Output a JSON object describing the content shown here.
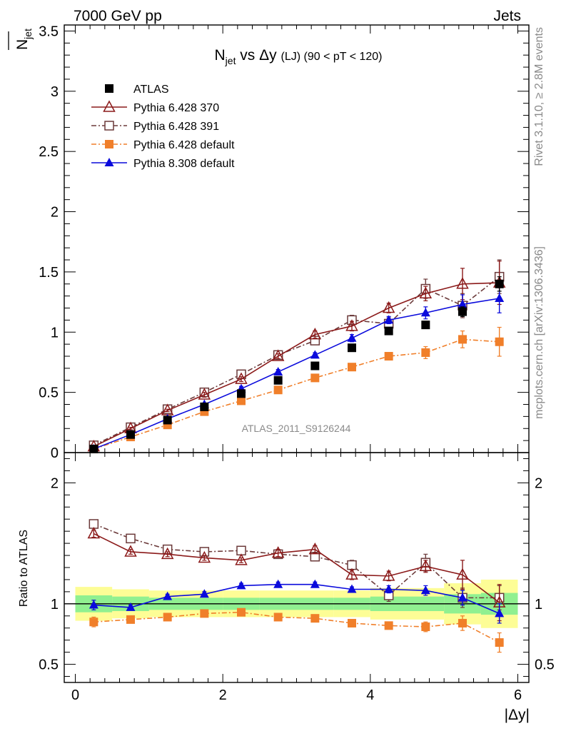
{
  "header": {
    "left": "7000 GeV pp",
    "right": "Jets"
  },
  "side_labels": {
    "rivet": "Rivet 3.1.10, ≥ 2.8M events",
    "mcplots": "mcplots.cern.ch [arXiv:1306.3436]"
  },
  "watermark": "ATLAS_2011_S9126244",
  "chart_data": [
    {
      "type": "scatter",
      "title_parts": {
        "n": "N",
        "n_sub": "jet",
        "mid": " vs Δy ",
        "small": "(LJ) (90 < pT < 120)"
      },
      "ylabel_parts": {
        "n": "N",
        "sub": "jet"
      },
      "xlabel": "|Δy|",
      "xlim": [
        -0.15,
        6.15
      ],
      "ylim": [
        0,
        3.55
      ],
      "xticks": [
        "0",
        "2",
        "4",
        "6"
      ],
      "yticks": [
        "0",
        "0.5",
        "1",
        "1.5",
        "2",
        "2.5",
        "3",
        "3.5"
      ],
      "x": [
        0.25,
        0.75,
        1.25,
        1.75,
        2.25,
        2.75,
        3.25,
        3.75,
        4.25,
        4.75,
        5.25,
        5.75
      ],
      "legend": {
        "placement": "top-left"
      },
      "series": [
        {
          "name": "ATLAS",
          "color": "#000000",
          "marker": "square",
          "line": "none",
          "values": [
            0.03,
            0.15,
            0.27,
            0.38,
            0.49,
            0.6,
            0.72,
            0.87,
            1.01,
            1.06,
            1.17,
            1.4
          ],
          "errors": [
            0.01,
            0.01,
            0.01,
            0.01,
            0.01,
            0.01,
            0.01,
            0.02,
            0.02,
            0.03,
            0.04,
            0.06
          ]
        },
        {
          "name": "Pythia 6.428 370",
          "color": "#8b1a1a",
          "marker": "triangle-open",
          "line": "solid",
          "values": [
            0.05,
            0.2,
            0.35,
            0.48,
            0.61,
            0.8,
            0.98,
            1.05,
            1.2,
            1.32,
            1.4,
            1.41
          ],
          "errors": [
            0.005,
            0.01,
            0.01,
            0.02,
            0.02,
            0.02,
            0.03,
            0.04,
            0.04,
            0.06,
            0.13,
            0.18
          ]
        },
        {
          "name": "Pythia 6.428 391",
          "color": "#6b3a3a",
          "marker": "square-open",
          "line": "dashdot",
          "values": [
            0.06,
            0.21,
            0.36,
            0.5,
            0.65,
            0.81,
            0.93,
            1.1,
            1.07,
            1.36,
            1.22,
            1.46
          ],
          "errors": [
            0.005,
            0.01,
            0.01,
            0.02,
            0.02,
            0.02,
            0.03,
            0.04,
            0.05,
            0.08,
            0.1,
            0.14
          ]
        },
        {
          "name": "Pythia 6.428 default",
          "color": "#f07f2a",
          "marker": "square",
          "line": "dashdot",
          "values": [
            0.03,
            0.13,
            0.23,
            0.34,
            0.43,
            0.52,
            0.62,
            0.71,
            0.8,
            0.83,
            0.94,
            0.92
          ],
          "errors": [
            0.005,
            0.01,
            0.01,
            0.01,
            0.02,
            0.02,
            0.02,
            0.03,
            0.03,
            0.05,
            0.07,
            0.12
          ]
        },
        {
          "name": "Pythia 8.308 default",
          "color": "#0a0adc",
          "marker": "triangle",
          "line": "solid",
          "values": [
            0.03,
            0.15,
            0.28,
            0.4,
            0.53,
            0.67,
            0.81,
            0.95,
            1.1,
            1.16,
            1.23,
            1.28
          ],
          "errors": [
            0.005,
            0.01,
            0.01,
            0.01,
            0.02,
            0.02,
            0.02,
            0.03,
            0.03,
            0.05,
            0.08,
            0.12
          ]
        }
      ]
    },
    {
      "type": "scatter",
      "ylabel": "Ratio to ATLAS",
      "xlabel": "|Δy|",
      "xlim": [
        -0.15,
        6.15
      ],
      "ylim": [
        0.35,
        2.25
      ],
      "yticks": [
        "0.5",
        "1",
        "2"
      ],
      "reference_line": 1,
      "bands": {
        "x_edges": [
          0,
          0.5,
          1,
          1.5,
          2,
          2.5,
          3,
          3.5,
          4,
          4.5,
          5,
          5.5,
          6
        ],
        "green_half": [
          0.07,
          0.06,
          0.05,
          0.05,
          0.05,
          0.05,
          0.05,
          0.05,
          0.06,
          0.06,
          0.08,
          0.09
        ],
        "yellow_half": [
          0.14,
          0.12,
          0.11,
          0.11,
          0.11,
          0.11,
          0.11,
          0.11,
          0.13,
          0.13,
          0.17,
          0.2
        ],
        "green_color": "#90f090",
        "yellow_color": "#fdfd96"
      },
      "series": [
        {
          "name": "Pythia 6.428 370",
          "color": "#8b1a1a",
          "marker": "triangle-open",
          "line": "solid",
          "values": [
            1.58,
            1.43,
            1.41,
            1.38,
            1.36,
            1.42,
            1.45,
            1.24,
            1.23,
            1.31,
            1.24,
            1.01
          ],
          "errors": [
            0.03,
            0.02,
            0.02,
            0.02,
            0.02,
            0.03,
            0.03,
            0.04,
            0.04,
            0.05,
            0.12,
            0.15
          ]
        },
        {
          "name": "Pythia 6.428 391",
          "color": "#6b3a3a",
          "marker": "square-open",
          "line": "dashdot",
          "values": [
            1.66,
            1.54,
            1.45,
            1.43,
            1.44,
            1.41,
            1.39,
            1.32,
            1.07,
            1.34,
            1.05,
            1.05
          ],
          "errors": [
            0.03,
            0.02,
            0.02,
            0.02,
            0.02,
            0.02,
            0.03,
            0.04,
            0.05,
            0.07,
            0.08,
            0.1
          ]
        },
        {
          "name": "Pythia 6.428 default",
          "color": "#f07f2a",
          "marker": "square",
          "line": "dashdot",
          "values": [
            0.85,
            0.87,
            0.89,
            0.92,
            0.93,
            0.89,
            0.88,
            0.84,
            0.82,
            0.81,
            0.84,
            0.68
          ],
          "errors": [
            0.04,
            0.02,
            0.02,
            0.02,
            0.02,
            0.02,
            0.02,
            0.03,
            0.03,
            0.04,
            0.06,
            0.08
          ]
        },
        {
          "name": "Pythia 8.308 default",
          "color": "#0a0adc",
          "marker": "triangle",
          "line": "solid",
          "values": [
            0.99,
            0.97,
            1.06,
            1.08,
            1.15,
            1.16,
            1.16,
            1.12,
            1.12,
            1.11,
            1.05,
            0.92
          ],
          "errors": [
            0.04,
            0.02,
            0.02,
            0.02,
            0.02,
            0.02,
            0.02,
            0.02,
            0.03,
            0.04,
            0.06,
            0.08
          ]
        }
      ]
    }
  ]
}
